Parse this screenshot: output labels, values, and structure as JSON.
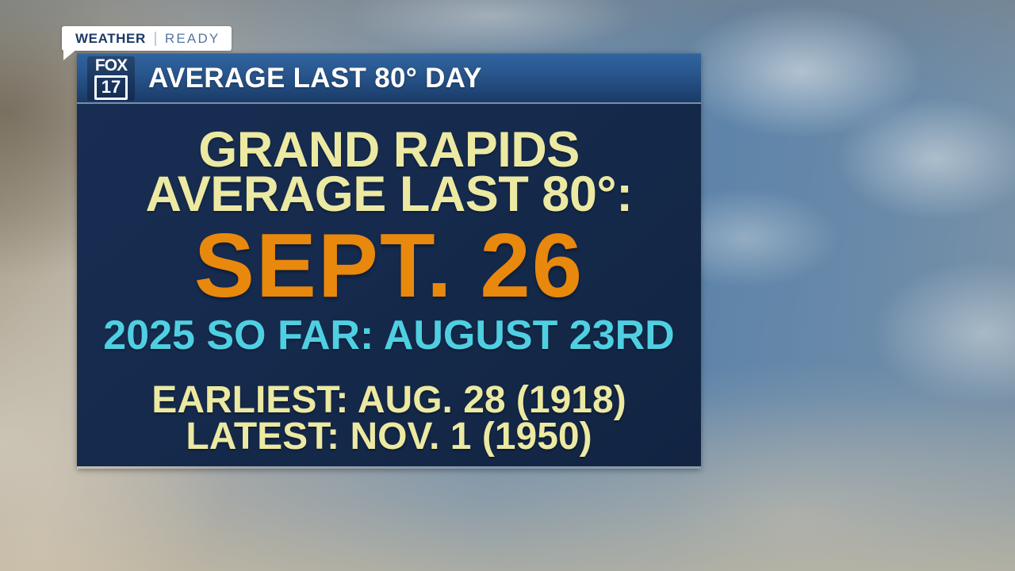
{
  "badge": {
    "weather": "WEATHER",
    "ready": "READY"
  },
  "station_logo": {
    "network": "FOX",
    "channel": "17"
  },
  "header": {
    "title": "AVERAGE LAST 80° DAY"
  },
  "card": {
    "title_line1": "GRAND RAPIDS",
    "title_line2": "AVERAGE LAST 80°:",
    "average_date": "SEPT. 26",
    "current_year_line": "2025 SO FAR: AUGUST 23RD",
    "earliest_line": "EARLIEST: AUG. 28 (1918)",
    "latest_line": "LATEST: NOV. 1 (1950)"
  },
  "colors": {
    "pale_yellow": "#ECE9A2",
    "accent_orange": "#E8880D",
    "accent_cyan": "#4FD0E2",
    "panel_navy": "#152A4C",
    "header_blue_top": "#30649F",
    "header_blue_bottom": "#1A3B68",
    "badge_weather_navy": "#1C3A66",
    "badge_ready_blue": "#54779F"
  }
}
